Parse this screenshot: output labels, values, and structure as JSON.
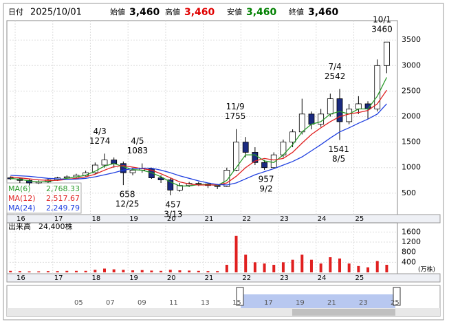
{
  "header": {
    "date_label": "日付",
    "date": "2025/10/01",
    "fields": [
      {
        "label": "始値",
        "value": "3,460",
        "color": "#000000"
      },
      {
        "label": "高値",
        "value": "3,460",
        "color": "#e00000"
      },
      {
        "label": "安値",
        "value": "3,460",
        "color": "#008000"
      },
      {
        "label": "終値",
        "value": "3,460",
        "color": "#000000"
      }
    ]
  },
  "chart_data": {
    "type": "candlestick",
    "x": [
      2015.875,
      2016.125,
      2016.375,
      2016.625,
      2016.875,
      2017.125,
      2017.375,
      2017.625,
      2017.875,
      2018.125,
      2018.375,
      2018.625,
      2018.875,
      2019.125,
      2019.375,
      2019.625,
      2019.875,
      2020.125,
      2020.375,
      2020.625,
      2020.875,
      2021.125,
      2021.375,
      2021.625,
      2021.875,
      2022.125,
      2022.375,
      2022.625,
      2022.875,
      2023.125,
      2023.375,
      2023.625,
      2023.875,
      2024.125,
      2024.375,
      2024.625,
      2024.875,
      2025.125,
      2025.375,
      2025.625,
      2025.875
    ],
    "xlim": [
      2015.78,
      2026.16
    ],
    "xticks": [
      {
        "value": 2016,
        "label": "16"
      },
      {
        "value": 2017,
        "label": "17"
      },
      {
        "value": 2018,
        "label": "18"
      },
      {
        "value": 2019,
        "label": "19"
      },
      {
        "value": 2020,
        "label": "20"
      },
      {
        "value": 2021,
        "label": "21"
      },
      {
        "value": 2022,
        "label": "22"
      },
      {
        "value": 2023,
        "label": "23"
      },
      {
        "value": 2024,
        "label": "24"
      },
      {
        "value": 2025,
        "label": "25"
      }
    ],
    "candles": [
      [
        800,
        830,
        760,
        780
      ],
      [
        780,
        800,
        700,
        750
      ],
      [
        750,
        770,
        650,
        700
      ],
      [
        700,
        750,
        680,
        720
      ],
      [
        720,
        790,
        700,
        760
      ],
      [
        760,
        820,
        740,
        800
      ],
      [
        800,
        850,
        780,
        820
      ],
      [
        820,
        880,
        800,
        850
      ],
      [
        850,
        940,
        830,
        900
      ],
      [
        900,
        1100,
        880,
        1050
      ],
      [
        1050,
        1274,
        1000,
        1150
      ],
      [
        1150,
        1200,
        1000,
        1080
      ],
      [
        1080,
        1120,
        658,
        900
      ],
      [
        900,
        1000,
        850,
        950
      ],
      [
        950,
        1083,
        900,
        980
      ],
      [
        980,
        1000,
        780,
        800
      ],
      [
        800,
        850,
        700,
        760
      ],
      [
        760,
        800,
        457,
        560
      ],
      [
        560,
        700,
        530,
        650
      ],
      [
        650,
        720,
        620,
        690
      ],
      [
        690,
        720,
        640,
        680
      ],
      [
        680,
        700,
        600,
        650
      ],
      [
        650,
        680,
        580,
        630
      ],
      [
        630,
        1000,
        620,
        950
      ],
      [
        950,
        1755,
        930,
        1500
      ],
      [
        1500,
        1600,
        1200,
        1300
      ],
      [
        1300,
        1400,
        1050,
        1100
      ],
      [
        1100,
        1150,
        957,
        1000
      ],
      [
        1000,
        1300,
        980,
        1250
      ],
      [
        1250,
        1550,
        1200,
        1500
      ],
      [
        1500,
        1750,
        1400,
        1700
      ],
      [
        1700,
        2350,
        1650,
        2050
      ],
      [
        2050,
        2100,
        1750,
        1850
      ],
      [
        1850,
        2150,
        1800,
        2050
      ],
      [
        2050,
        2450,
        2000,
        2350
      ],
      [
        2350,
        2542,
        1541,
        1900
      ],
      [
        1900,
        2250,
        1850,
        2150
      ],
      [
        2150,
        2400,
        2050,
        2250
      ],
      [
        2250,
        2300,
        1950,
        2150
      ],
      [
        2150,
        3120,
        2100,
        3000
      ],
      [
        3000,
        3460,
        2850,
        3460
      ]
    ],
    "up_color": "#ffffff",
    "down_color": "#1a2a80",
    "ylim": [
      80,
      3880
    ],
    "yticks": [
      500,
      1000,
      1500,
      2000,
      2500,
      3000,
      3500
    ],
    "series": [
      {
        "name": "MA(6)",
        "color": "#2a9a2a",
        "latest_label": "2,768.33",
        "values": [
          790,
          770,
          740,
          720,
          730,
          760,
          790,
          820,
          850,
          930,
          1030,
          1080,
          1020,
          960,
          950,
          900,
          820,
          720,
          640,
          640,
          670,
          670,
          650,
          750,
          1000,
          1250,
          1250,
          1130,
          1100,
          1250,
          1450,
          1700,
          1850,
          1900,
          2050,
          2100,
          2050,
          2150,
          2150,
          2400,
          2768.33
        ]
      },
      {
        "name": "MA(12)",
        "color": "#e02020",
        "latest_label": "2,517.67",
        "values": [
          820,
          800,
          780,
          760,
          750,
          750,
          770,
          790,
          820,
          870,
          950,
          1020,
          1040,
          1010,
          980,
          950,
          880,
          800,
          720,
          680,
          660,
          660,
          660,
          700,
          830,
          1000,
          1130,
          1180,
          1150,
          1180,
          1300,
          1480,
          1650,
          1780,
          1900,
          2000,
          2050,
          2080,
          2120,
          2250,
          2517.67
        ]
      },
      {
        "name": "MA(24)",
        "color": "#2040e0",
        "latest_label": "2,249.79",
        "values": [
          850,
          840,
          830,
          810,
          790,
          780,
          770,
          775,
          790,
          820,
          860,
          900,
          950,
          980,
          990,
          990,
          950,
          900,
          840,
          790,
          740,
          700,
          670,
          660,
          700,
          780,
          860,
          920,
          980,
          1050,
          1120,
          1210,
          1330,
          1450,
          1580,
          1700,
          1780,
          1870,
          1950,
          2050,
          2249.79
        ]
      }
    ],
    "annotations": [
      {
        "date": "10/1",
        "value": 3460,
        "x": 2025.75,
        "pos": "above"
      },
      {
        "date": "7/4",
        "value": 2542,
        "x": 2024.5,
        "pos": "above"
      },
      {
        "date": "11/9",
        "value": 1755,
        "x": 2021.85,
        "pos": "above"
      },
      {
        "date": "4/3",
        "value": 1274,
        "x": 2018.25,
        "pos": "above"
      },
      {
        "date": "4/5",
        "value": 1083,
        "x": 2019.25,
        "pos": "above"
      },
      {
        "date": "12/25",
        "value": 658,
        "x": 2018.98,
        "pos": "below"
      },
      {
        "date": "3/13",
        "value": 457,
        "x": 2020.2,
        "pos": "below"
      },
      {
        "date": "9/2",
        "value": 957,
        "x": 2022.67,
        "pos": "below"
      },
      {
        "date": "8/5",
        "value": 1541,
        "x": 2024.6,
        "pos": "below"
      }
    ],
    "volume": {
      "title": "出来高",
      "latest": "24,400株",
      "unit": "(万株)",
      "color": "#e02020",
      "ylim": [
        0,
        1800
      ],
      "yticks": [
        400,
        800,
        1200,
        1600
      ],
      "values": [
        60,
        50,
        40,
        40,
        50,
        50,
        60,
        60,
        60,
        100,
        150,
        120,
        100,
        80,
        90,
        70,
        60,
        100,
        80,
        70,
        60,
        50,
        50,
        300,
        1450,
        700,
        400,
        350,
        300,
        400,
        500,
        700,
        500,
        350,
        600,
        550,
        350,
        250,
        200,
        450,
        300
      ]
    }
  },
  "navigator": {
    "labels": [
      "05",
      "07",
      "09",
      "11",
      "13",
      "15",
      "17",
      "19",
      "21",
      "23",
      "25"
    ]
  }
}
